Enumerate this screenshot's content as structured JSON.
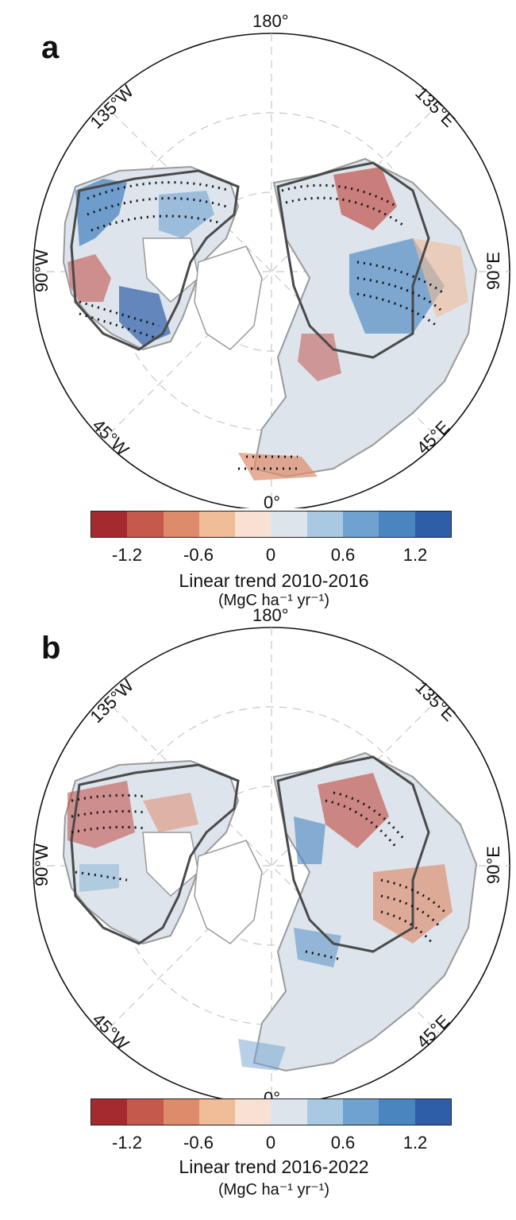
{
  "panels": [
    {
      "label": "a",
      "lon_labels": {
        "top": "180°",
        "bottom": "0°",
        "left": "90°W",
        "right": "90°E",
        "ul": "135°W",
        "ur": "135°E",
        "ll": "45°W",
        "lr": "45°E"
      },
      "colorbar_ticks": [
        "-1.2",
        "-0.6",
        "0",
        "0.6",
        "1.2"
      ],
      "colorbar_title": "Linear trend 2010-2016",
      "colorbar_units": "(MgC ha⁻¹ yr⁻¹)"
    },
    {
      "label": "b",
      "lon_labels": {
        "top": "180°",
        "bottom": "0°",
        "left": "90°W",
        "right": "90°E",
        "ul": "135°W",
        "ur": "135°E",
        "ll": "45°W",
        "lr": "45°E"
      },
      "colorbar_ticks": [
        "-1.2",
        "-0.6",
        "0",
        "0.6",
        "1.2"
      ],
      "colorbar_title": "Linear trend 2016-2022",
      "colorbar_units": "(MgC ha⁻¹ yr⁻¹)"
    }
  ],
  "colorbar_colors": [
    "#a52a30",
    "#c55a4c",
    "#de8b6b",
    "#f1bc98",
    "#f8e0d2",
    "#dde4ec",
    "#a9c9e2",
    "#6fa2cf",
    "#4a85c0",
    "#2f5ea8"
  ],
  "map_colors": {
    "land_outline": "#9a9a9a",
    "boreal_outline": "#4a4a4a",
    "grid": "#c8c8c8",
    "positive": "#3a6fb8",
    "negative": "#c0473f",
    "neutral": "#dfe5ec"
  }
}
